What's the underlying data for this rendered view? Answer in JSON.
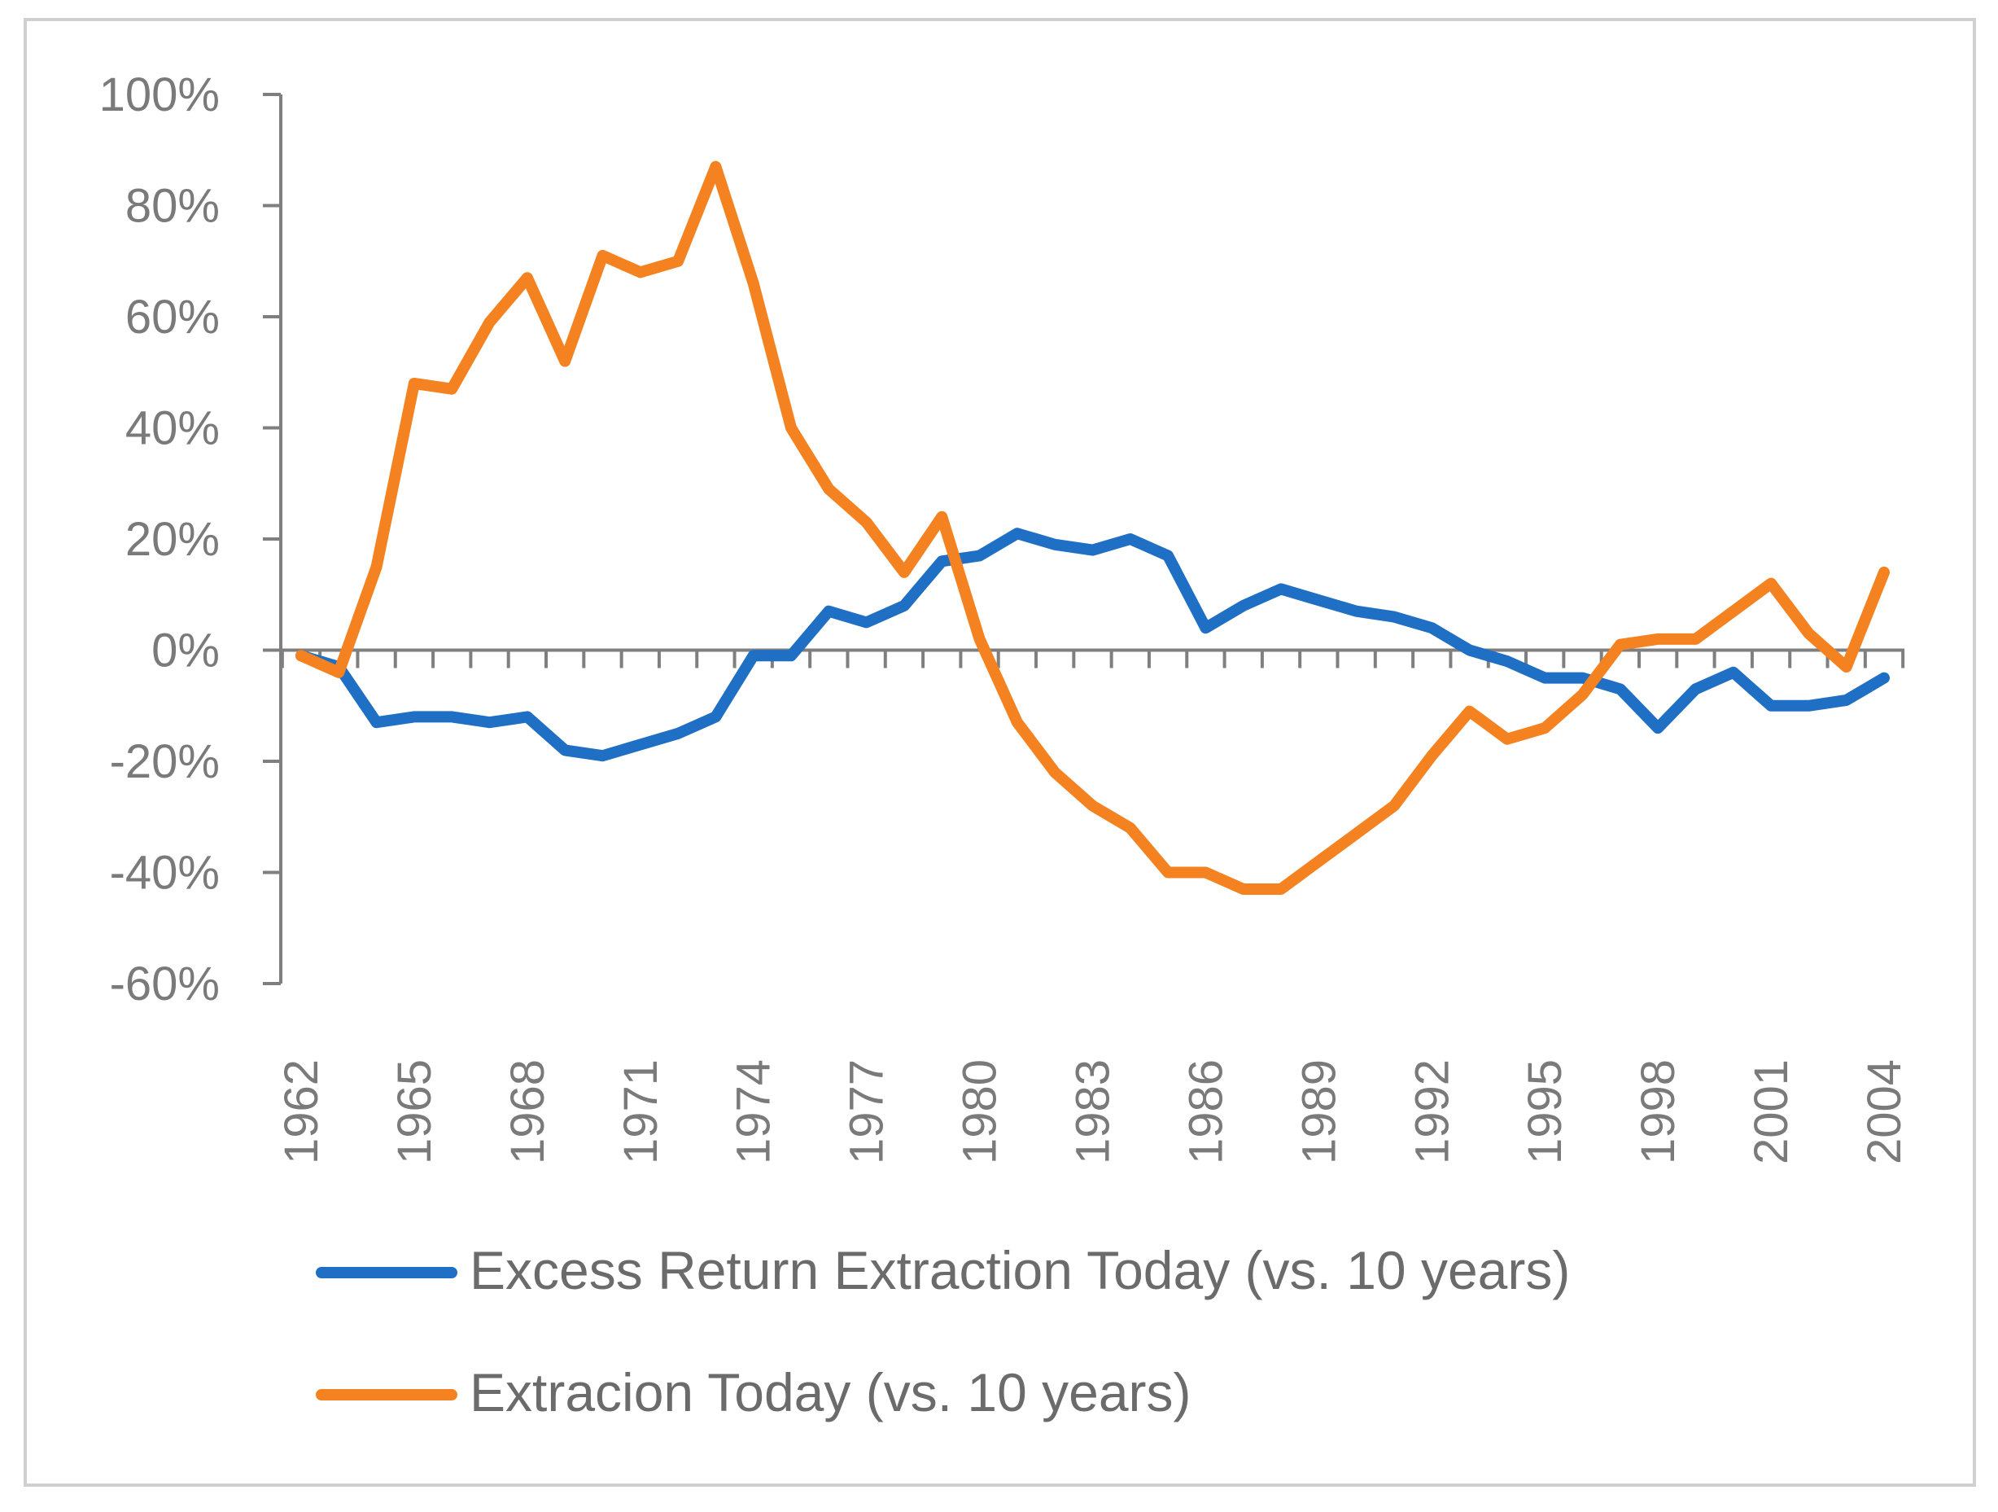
{
  "chart_data": {
    "type": "line",
    "title": "",
    "xlabel": "",
    "ylabel": "",
    "ylim": [
      -60,
      100
    ],
    "y_ticks": [
      100,
      80,
      60,
      40,
      20,
      0,
      -20,
      -40,
      -60
    ],
    "y_tick_labels": [
      "100%",
      "80%",
      "60%",
      "40%",
      "20%",
      "0%",
      "-20%",
      "-40%",
      "-60%"
    ],
    "x": [
      1962,
      1963,
      1964,
      1965,
      1966,
      1967,
      1968,
      1969,
      1970,
      1971,
      1972,
      1973,
      1974,
      1975,
      1976,
      1977,
      1978,
      1979,
      1980,
      1981,
      1982,
      1983,
      1984,
      1985,
      1986,
      1987,
      1988,
      1989,
      1990,
      1991,
      1992,
      1993,
      1994,
      1995,
      1996,
      1997,
      1998,
      1999,
      2000,
      2001,
      2002,
      2003,
      2004
    ],
    "x_tick_labels": [
      "1962",
      "1965",
      "1968",
      "1971",
      "1974",
      "1977",
      "1980",
      "1983",
      "1986",
      "1989",
      "1992",
      "1995",
      "1998",
      "2001",
      "2004"
    ],
    "x_tick_values": [
      1962,
      1965,
      1968,
      1971,
      1974,
      1977,
      1980,
      1983,
      1986,
      1989,
      1992,
      1995,
      1998,
      2001,
      2004
    ],
    "grid": false,
    "legend_position": "bottom",
    "series": [
      {
        "name": "Excess Return Extraction Today (vs. 10 years)",
        "color": "#1f6fc5",
        "values": [
          -1,
          -3,
          -13,
          -12,
          -12,
          -13,
          -12,
          -18,
          -19,
          -17,
          -15,
          -12,
          -1,
          -1,
          7,
          5,
          8,
          16,
          17,
          21,
          19,
          18,
          20,
          17,
          4,
          8,
          11,
          9,
          7,
          6,
          4,
          0,
          -2,
          -5,
          -5,
          -7,
          -14,
          -7,
          -4,
          -10,
          -10,
          -9,
          -5
        ]
      },
      {
        "name": "Extracion Today (vs. 10 years)",
        "color": "#f58220",
        "values": [
          -1,
          -4,
          15,
          48,
          47,
          59,
          67,
          52,
          71,
          68,
          70,
          87,
          66,
          40,
          29,
          23,
          14,
          24,
          2,
          -13,
          -22,
          -28,
          -32,
          -40,
          -40,
          -43,
          -43,
          -38,
          -33,
          -28,
          -19,
          -11,
          -16,
          -14,
          -8,
          1,
          2,
          2,
          7,
          12,
          3,
          -3,
          14
        ]
      }
    ]
  }
}
